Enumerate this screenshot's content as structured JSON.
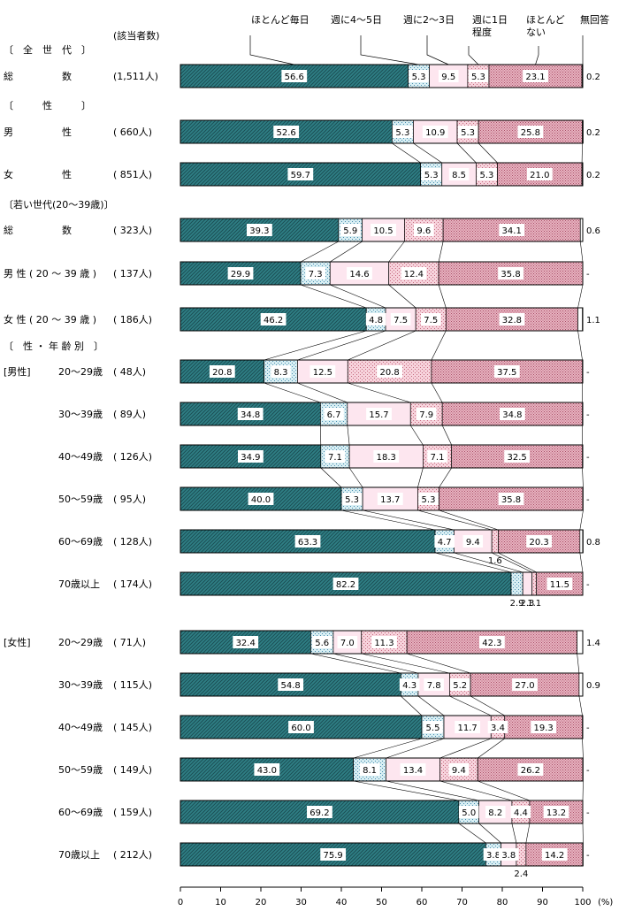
{
  "chart_data": {
    "type": "bar",
    "stacked": true,
    "orientation": "horizontal",
    "percent": true,
    "xlim": [
      0,
      100
    ],
    "x_ticks": [
      "0",
      "10",
      "20",
      "30",
      "40",
      "50",
      "60",
      "70",
      "80",
      "90",
      "100"
    ],
    "x_unit": "(%)",
    "count_header": "(該当者数)",
    "legend": [
      {
        "label": "ほとんど毎日",
        "color": "#2f7f85",
        "pattern": "diag"
      },
      {
        "label": "週に4～5日",
        "color": "#cfe8ee",
        "pattern": "dots"
      },
      {
        "label": "週に2～3日",
        "color": "#fde6ef",
        "pattern": "plain"
      },
      {
        "label": "週に1日程度",
        "color": "#f2c2cf",
        "pattern": "dots"
      },
      {
        "label": "ほとんどない",
        "color": "#e6a9b8",
        "pattern": "dense"
      },
      {
        "label": "無回答",
        "color": "#ffffff",
        "pattern": "plain"
      }
    ],
    "sections": [
      {
        "label": "〔　全　世　代　〕"
      },
      {
        "label": "〔　　　性　　　〕"
      },
      {
        "label": "〔若い世代(20～39歳)〕"
      },
      {
        "label": "〔　性 ・ 年 齢 別　〕"
      }
    ],
    "rows": [
      {
        "group": "",
        "label": "総　　　　　数",
        "count": "(1,511人)",
        "values": [
          56.6,
          5.3,
          9.5,
          5.3,
          23.1,
          0.2
        ],
        "labels": [
          "56.6",
          "5.3",
          "9.5",
          "5.3",
          "23.1",
          "0.2"
        ]
      },
      {
        "group": "",
        "label": "男　　　　　性",
        "count": "(  660人)",
        "values": [
          52.6,
          5.3,
          10.9,
          5.3,
          25.8,
          0.2
        ],
        "labels": [
          "52.6",
          "5.3",
          "10.9",
          "5.3",
          "25.8",
          "0.2"
        ]
      },
      {
        "group": "",
        "label": "女　　　　　性",
        "count": "(  851人)",
        "values": [
          59.7,
          5.3,
          8.5,
          5.3,
          21.0,
          0.2
        ],
        "labels": [
          "59.7",
          "5.3",
          "8.5",
          "5.3",
          "21.0",
          "0.2"
        ]
      },
      {
        "group": "",
        "label": "総　　　　　数",
        "count": "(  323人)",
        "values": [
          39.3,
          5.9,
          10.5,
          9.6,
          34.1,
          0.6
        ],
        "labels": [
          "39.3",
          "5.9",
          "10.5",
          "9.6",
          "34.1",
          "0.6"
        ]
      },
      {
        "group": "",
        "label": "男 性 ( 20 ～ 39 歳 )",
        "count": "(  137人)",
        "values": [
          29.9,
          7.3,
          14.6,
          12.4,
          35.8,
          0
        ],
        "labels": [
          "29.9",
          "7.3",
          "14.6",
          "12.4",
          "35.8",
          "-"
        ]
      },
      {
        "group": "",
        "label": "女 性 ( 20 ～ 39 歳 )",
        "count": "(  186人)",
        "values": [
          46.2,
          4.8,
          7.5,
          7.5,
          32.8,
          1.1
        ],
        "labels": [
          "46.2",
          "4.8",
          "7.5",
          "7.5",
          "32.8",
          "1.1"
        ]
      },
      {
        "group": "[男性]",
        "label": "20～29歳",
        "count": "(   48人)",
        "values": [
          20.8,
          8.3,
          12.5,
          20.8,
          37.5,
          0
        ],
        "labels": [
          "20.8",
          "8.3",
          "12.5",
          "20.8",
          "37.5",
          "-"
        ]
      },
      {
        "group": "",
        "label": "30～39歳",
        "count": "(   89人)",
        "values": [
          34.8,
          6.7,
          15.7,
          7.9,
          34.8,
          0
        ],
        "labels": [
          "34.8",
          "6.7",
          "15.7",
          "7.9",
          "34.8",
          "-"
        ]
      },
      {
        "group": "",
        "label": "40～49歳",
        "count": "(  126人)",
        "values": [
          34.9,
          7.1,
          18.3,
          7.1,
          32.5,
          0
        ],
        "labels": [
          "34.9",
          "7.1",
          "18.3",
          "7.1",
          "32.5",
          "-"
        ]
      },
      {
        "group": "",
        "label": "50～59歳",
        "count": "(   95人)",
        "values": [
          40.0,
          5.3,
          13.7,
          5.3,
          35.8,
          0
        ],
        "labels": [
          "40.0",
          "5.3",
          "13.7",
          "5.3",
          "35.8",
          "-"
        ]
      },
      {
        "group": "",
        "label": "60～69歳",
        "count": "(  128人)",
        "values": [
          63.3,
          4.7,
          9.4,
          1.6,
          20.3,
          0.8
        ],
        "labels": [
          "63.3",
          "4.7",
          "9.4",
          "1.6",
          "20.3",
          "0.8"
        ]
      },
      {
        "group": "",
        "label": "70歳以上",
        "count": "(  174人)",
        "values": [
          82.2,
          2.9,
          2.3,
          1.1,
          11.5,
          0
        ],
        "labels": [
          "82.2",
          "2.9",
          "2.3",
          "1.1",
          "11.5",
          "-"
        ]
      },
      {
        "group": "[女性]",
        "label": "20～29歳",
        "count": "(   71人)",
        "values": [
          32.4,
          5.6,
          7.0,
          11.3,
          42.3,
          1.4
        ],
        "labels": [
          "32.4",
          "5.6",
          "7.0",
          "11.3",
          "42.3",
          "1.4"
        ]
      },
      {
        "group": "",
        "label": "30～39歳",
        "count": "(  115人)",
        "values": [
          54.8,
          4.3,
          7.8,
          5.2,
          27.0,
          0.9
        ],
        "labels": [
          "54.8",
          "4.3",
          "7.8",
          "5.2",
          "27.0",
          "0.9"
        ]
      },
      {
        "group": "",
        "label": "40～49歳",
        "count": "(  145人)",
        "values": [
          60.0,
          5.5,
          11.7,
          3.4,
          19.3,
          0
        ],
        "labels": [
          "60.0",
          "5.5",
          "11.7",
          "3.4",
          "19.3",
          "-"
        ]
      },
      {
        "group": "",
        "label": "50～59歳",
        "count": "(  149人)",
        "values": [
          43.0,
          8.1,
          13.4,
          9.4,
          26.2,
          0
        ],
        "labels": [
          "43.0",
          "8.1",
          "13.4",
          "9.4",
          "26.2",
          "-"
        ]
      },
      {
        "group": "",
        "label": "60～69歳",
        "count": "(  159人)",
        "values": [
          69.2,
          5.0,
          8.2,
          4.4,
          13.2,
          0
        ],
        "labels": [
          "69.2",
          "5.0",
          "8.2",
          "4.4",
          "13.2",
          "-"
        ]
      },
      {
        "group": "",
        "label": "70歳以上",
        "count": "(  212人)",
        "values": [
          75.9,
          3.8,
          3.8,
          2.4,
          14.2,
          0
        ],
        "labels": [
          "75.9",
          "3.8",
          "3.8",
          "2.4",
          "14.2",
          "-"
        ]
      }
    ]
  }
}
